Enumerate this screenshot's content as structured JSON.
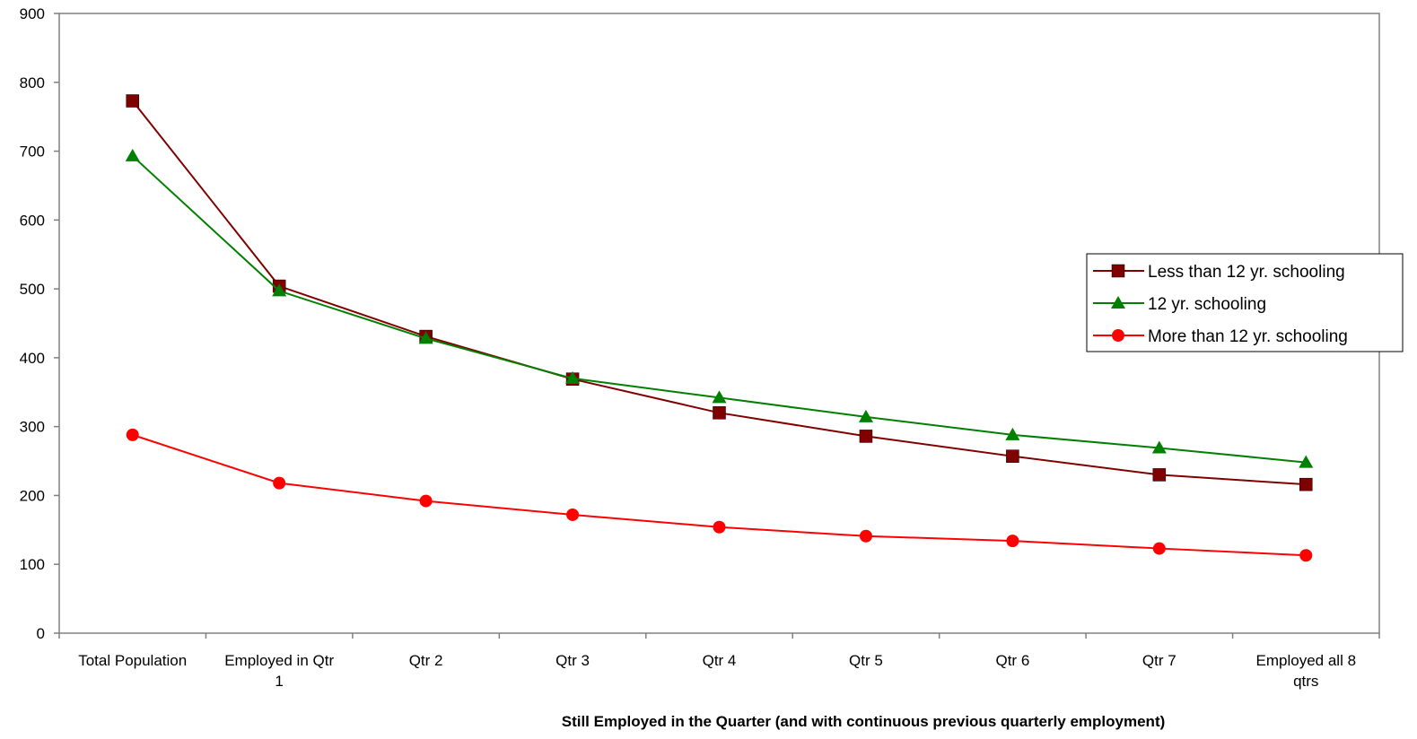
{
  "chart_data": {
    "type": "line",
    "title": "",
    "xlabel": "Still Employed in the Quarter (and with continuous previous quarterly employment)",
    "ylabel": "",
    "ylim": [
      0,
      900
    ],
    "yticks": [
      0,
      100,
      200,
      300,
      400,
      500,
      600,
      700,
      800,
      900
    ],
    "categories": [
      [
        "Total Population"
      ],
      [
        "Employed in Qtr",
        "1"
      ],
      [
        "Qtr 2"
      ],
      [
        "Qtr 3"
      ],
      [
        "Qtr 4"
      ],
      [
        "Qtr 5"
      ],
      [
        "Qtr 6"
      ],
      [
        "Qtr 7"
      ],
      [
        "Employed all 8",
        "qtrs"
      ]
    ],
    "grid": false,
    "legend_position": "right",
    "series": [
      {
        "name": "Less than 12 yr. schooling",
        "color": "#800000",
        "marker": "square",
        "values": [
          773,
          504,
          431,
          369,
          320,
          286,
          257,
          230,
          216
        ]
      },
      {
        "name": "12 yr. schooling",
        "color": "#008000",
        "marker": "triangle",
        "values": [
          693,
          497,
          428,
          370,
          342,
          314,
          288,
          269,
          248
        ]
      },
      {
        "name": "More than 12 yr. schooling",
        "color": "#ff0000",
        "marker": "circle",
        "values": [
          288,
          218,
          192,
          172,
          154,
          141,
          134,
          123,
          113
        ]
      }
    ]
  }
}
